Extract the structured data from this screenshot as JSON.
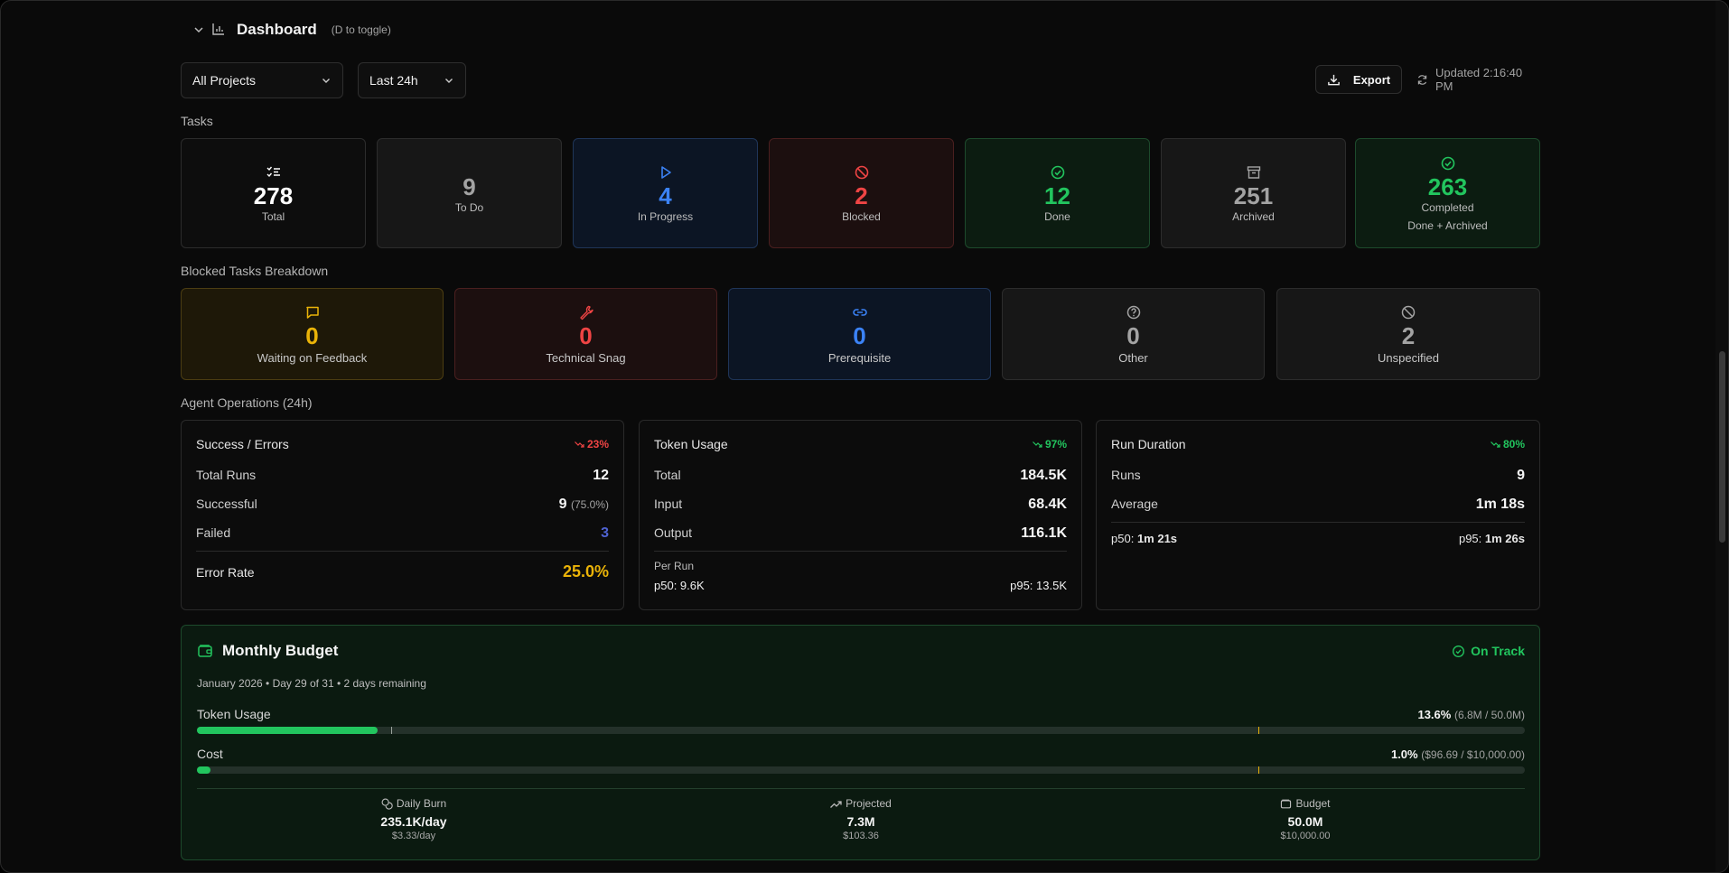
{
  "header": {
    "title": "Dashboard",
    "hint": "(D to toggle)"
  },
  "toolbar": {
    "project_select": "All Projects",
    "range_select": "Last 24h",
    "export_label": "Export",
    "updated_text": "Updated 2:16:40 PM"
  },
  "tasks": {
    "section_label": "Tasks",
    "cards": [
      {
        "value": "278",
        "label": "Total",
        "icon": "list-check-icon",
        "color": "#ffffff"
      },
      {
        "value": "9",
        "label": "To Do",
        "icon": "",
        "color": "#a3a3a3"
      },
      {
        "value": "4",
        "label": "In Progress",
        "icon": "play-icon",
        "color": "#3b82f6"
      },
      {
        "value": "2",
        "label": "Blocked",
        "icon": "ban-icon",
        "color": "#ef4444"
      },
      {
        "value": "12",
        "label": "Done",
        "icon": "check-circle-icon",
        "color": "#22c55e"
      },
      {
        "value": "251",
        "label": "Archived",
        "icon": "archive-icon",
        "color": "#a3a3a3"
      },
      {
        "value": "263",
        "label": "Completed",
        "sub": "Done + Archived",
        "icon": "check-circle-icon",
        "color": "#22c55e"
      }
    ]
  },
  "blocked": {
    "section_label": "Blocked Tasks Breakdown",
    "cards": [
      {
        "value": "0",
        "label": "Waiting on Feedback",
        "icon": "message-square-icon",
        "color": "#eab308"
      },
      {
        "value": "0",
        "label": "Technical Snag",
        "icon": "wrench-icon",
        "color": "#ef4444"
      },
      {
        "value": "0",
        "label": "Prerequisite",
        "icon": "link-icon",
        "color": "#3b82f6"
      },
      {
        "value": "0",
        "label": "Other",
        "icon": "help-circle-icon",
        "color": "#a3a3a3"
      },
      {
        "value": "2",
        "label": "Unspecified",
        "icon": "ban-icon",
        "color": "#a3a3a3"
      }
    ]
  },
  "agent_ops": {
    "section_label": "Agent Operations (24h)",
    "success_errors": {
      "title": "Success / Errors",
      "trend": "23%",
      "total_runs_label": "Total Runs",
      "total_runs": "12",
      "successful_label": "Successful",
      "successful": "9",
      "successful_pct": "(75.0%)",
      "failed_label": "Failed",
      "failed": "3",
      "error_rate_label": "Error Rate",
      "error_rate": "25.0%"
    },
    "token_usage": {
      "title": "Token Usage",
      "trend": "97%",
      "total_label": "Total",
      "total": "184.5K",
      "input_label": "Input",
      "input": "68.4K",
      "output_label": "Output",
      "output": "116.1K",
      "per_run_label": "Per Run",
      "p50": "p50: 9.6K",
      "p95": "p95: 13.5K"
    },
    "run_duration": {
      "title": "Run Duration",
      "trend": "80%",
      "runs_label": "Runs",
      "runs": "9",
      "average_label": "Average",
      "average": "1m 18s",
      "p50_label": "p50:",
      "p50": "1m 21s",
      "p95_label": "p95:",
      "p95": "1m 26s"
    }
  },
  "budget": {
    "title": "Monthly Budget",
    "status": "On Track",
    "period": "January 2026 • Day 29 of 31 • 2 days remaining",
    "token_label": "Token Usage",
    "token_pct": "13.6%",
    "token_detail": "(6.8M / 50.0M)",
    "token_fill": 0.136,
    "cost_label": "Cost",
    "cost_pct": "1.0%",
    "cost_detail": "($96.69 / $10,000.00)",
    "cost_fill": 0.01,
    "daily_burn_label": "Daily Burn",
    "daily_burn": "235.1K/day",
    "daily_burn_cost": "$3.33/day",
    "projected_label": "Projected",
    "projected": "7.3M",
    "projected_cost": "$103.36",
    "budget_label": "Budget",
    "budget_tokens": "50.0M",
    "budget_cost": "$10,000.00"
  }
}
